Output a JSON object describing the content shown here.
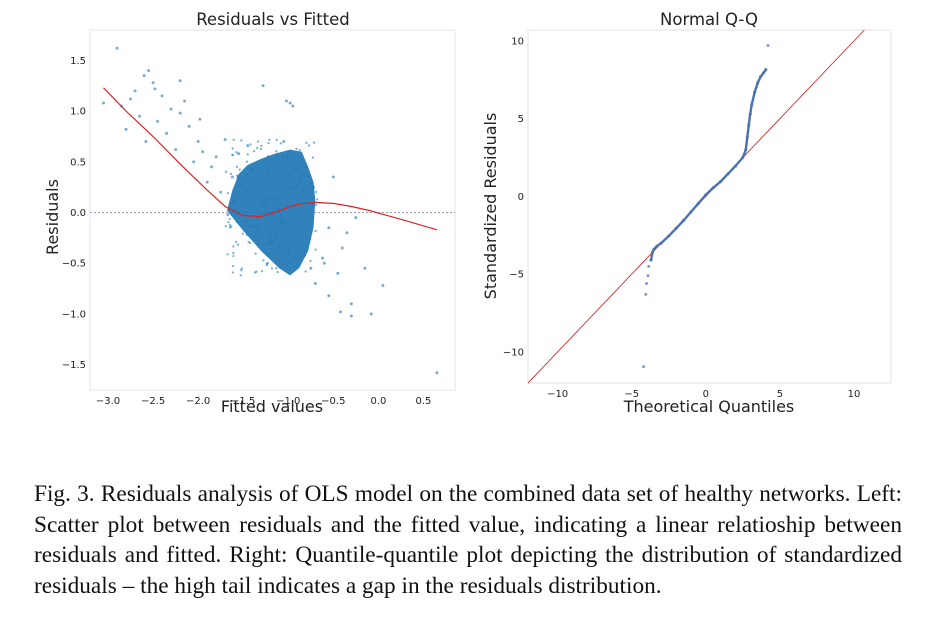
{
  "chart_data": [
    {
      "type": "scatter",
      "title": "Residuals vs Fitted",
      "xlabel": "Fitted values",
      "ylabel": "Residuals",
      "xlim": [
        -3.2,
        0.85
      ],
      "ylim": [
        -1.75,
        1.8
      ],
      "xticks": [
        -3.0,
        -2.5,
        -2.0,
        -1.5,
        -1.0,
        -0.5,
        0.0,
        0.5
      ],
      "xtick_labels": [
        "−3.0",
        "−2.5",
        "−2.0",
        "−1.5",
        "−1.0",
        "−0.5",
        "0.0",
        "0.5"
      ],
      "yticks": [
        1.5,
        1.0,
        0.5,
        0.0,
        -0.5,
        -1.0,
        -1.5
      ],
      "ytick_labels": [
        "1.5",
        "1.0",
        "0.5",
        "0.0",
        "−0.5",
        "−1.0",
        "−1.5"
      ],
      "reference_line": {
        "y": 0.0,
        "style": "dotted",
        "color": "#8a8ab8"
      },
      "dense_cluster": {
        "fitted_range": [
          -1.65,
          -0.65
        ],
        "residual_range": [
          -0.65,
          0.75
        ],
        "color": "#1f77b4"
      },
      "lowess": {
        "color": "#d62728",
        "x": [
          -3.05,
          -2.8,
          -2.5,
          -2.2,
          -1.9,
          -1.7,
          -1.5,
          -1.3,
          -1.1,
          -0.9,
          -0.7,
          -0.5,
          -0.3,
          -0.1,
          0.1,
          0.3,
          0.65
        ],
        "y": [
          1.23,
          1.0,
          0.75,
          0.48,
          0.22,
          0.06,
          -0.03,
          -0.04,
          0.02,
          0.08,
          0.1,
          0.09,
          0.06,
          0.02,
          -0.03,
          -0.08,
          -0.17
        ]
      },
      "points": [
        {
          "x": -2.9,
          "y": 1.62
        },
        {
          "x": -3.05,
          "y": 1.08
        },
        {
          "x": -2.85,
          "y": 1.05
        },
        {
          "x": -2.55,
          "y": 1.4
        },
        {
          "x": -2.6,
          "y": 1.35
        },
        {
          "x": -2.5,
          "y": 1.28
        },
        {
          "x": -2.7,
          "y": 1.2
        },
        {
          "x": -2.4,
          "y": 1.15
        },
        {
          "x": -2.3,
          "y": 1.02
        },
        {
          "x": -2.65,
          "y": 0.95
        },
        {
          "x": -2.45,
          "y": 0.9
        },
        {
          "x": -2.2,
          "y": 0.98
        },
        {
          "x": -2.1,
          "y": 0.85
        },
        {
          "x": -2.35,
          "y": 0.78
        },
        {
          "x": -2.0,
          "y": 0.7
        },
        {
          "x": -2.25,
          "y": 0.62
        },
        {
          "x": -1.95,
          "y": 0.6
        },
        {
          "x": -2.05,
          "y": 0.5
        },
        {
          "x": -1.85,
          "y": 0.45
        },
        {
          "x": -1.9,
          "y": 0.3
        },
        {
          "x": -1.8,
          "y": 0.55
        },
        {
          "x": -1.75,
          "y": 0.2
        },
        {
          "x": -2.15,
          "y": 1.1
        },
        {
          "x": -1.98,
          "y": 0.92
        },
        {
          "x": -1.7,
          "y": 0.72
        },
        {
          "x": -1.62,
          "y": 0.35
        },
        {
          "x": -2.8,
          "y": 0.82
        },
        {
          "x": -2.58,
          "y": 0.7
        },
        {
          "x": -1.28,
          "y": 1.25
        },
        {
          "x": -0.98,
          "y": 1.08
        },
        {
          "x": -1.02,
          "y": 1.1
        },
        {
          "x": -0.95,
          "y": 1.05
        },
        {
          "x": -0.6,
          "y": -0.5
        },
        {
          "x": -0.62,
          "y": -0.45
        },
        {
          "x": -0.45,
          "y": -0.6
        },
        {
          "x": -0.4,
          "y": -0.35
        },
        {
          "x": -0.35,
          "y": -0.2
        },
        {
          "x": -0.3,
          "y": -0.9
        },
        {
          "x": -0.3,
          "y": -1.02
        },
        {
          "x": -0.08,
          "y": -1.0
        },
        {
          "x": 0.05,
          "y": -0.72
        },
        {
          "x": -0.15,
          "y": -0.55
        },
        {
          "x": -0.25,
          "y": -0.05
        },
        {
          "x": -0.55,
          "y": -0.15
        },
        {
          "x": -0.5,
          "y": 0.35
        },
        {
          "x": -0.7,
          "y": -0.7
        },
        {
          "x": -0.75,
          "y": -0.55
        },
        {
          "x": 0.65,
          "y": -1.58
        },
        {
          "x": -1.05,
          "y": 0.7
        },
        {
          "x": -0.8,
          "y": 0.45
        },
        {
          "x": -0.72,
          "y": 0.25
        },
        {
          "x": -1.55,
          "y": 0.58
        },
        {
          "x": -1.45,
          "y": 0.66
        },
        {
          "x": -2.2,
          "y": 1.3
        },
        {
          "x": -2.48,
          "y": 1.22
        },
        {
          "x": -2.75,
          "y": 1.12
        },
        {
          "x": -1.6,
          "y": 0.1
        },
        {
          "x": -1.67,
          "y": -0.02
        },
        {
          "x": -0.55,
          "y": -0.82
        },
        {
          "x": -0.42,
          "y": -0.98
        }
      ]
    },
    {
      "type": "line",
      "title": "Normal Q-Q",
      "xlabel": "Theoretical Quantiles",
      "ylabel": "Standardized Residuals",
      "xlim": [
        -12,
        12.5
      ],
      "ylim": [
        -12,
        10.7
      ],
      "xticks": [
        -10,
        -5,
        0,
        5,
        10
      ],
      "xtick_labels": [
        "−10",
        "−5",
        "0",
        "5",
        "10"
      ],
      "yticks": [
        10,
        5,
        0,
        -5,
        -10
      ],
      "ytick_labels": [
        "10",
        "5",
        "0",
        "−5",
        "−10"
      ],
      "reference_line": {
        "slope": 1,
        "intercept": 0,
        "color": "#d62728"
      },
      "series": [
        {
          "name": "standardized residuals",
          "color": "#4c72b0",
          "x": [
            -3.7,
            -3.6,
            -3.5,
            -3.3,
            -3.0,
            -2.5,
            -2.0,
            -1.5,
            -1.0,
            -0.5,
            0.0,
            0.5,
            1.0,
            1.5,
            2.0,
            2.5,
            2.7,
            2.8,
            2.9,
            3.0,
            3.1,
            3.3,
            3.5,
            3.7,
            3.9,
            4.05
          ],
          "y": [
            -4.1,
            -3.6,
            -3.4,
            -3.2,
            -3.0,
            -2.55,
            -2.05,
            -1.55,
            -1.0,
            -0.45,
            0.1,
            0.55,
            0.95,
            1.45,
            1.95,
            2.5,
            3.0,
            3.8,
            4.6,
            5.3,
            5.9,
            6.7,
            7.3,
            7.7,
            7.95,
            8.15
          ]
        }
      ],
      "outliers": [
        {
          "x": -3.85,
          "y": -4.5
        },
        {
          "x": -3.9,
          "y": -5.1
        },
        {
          "x": -4.0,
          "y": -5.6
        },
        {
          "x": -4.05,
          "y": -6.3
        },
        {
          "x": -4.2,
          "y": -10.95
        },
        {
          "x": 4.2,
          "y": 9.7
        }
      ]
    }
  ],
  "caption": "Fig. 3.  Residuals analysis of OLS model on the combined data set of healthy networks. Left: Scatter plot between residuals and the fitted value, indicating a linear relatioship between residuals and fitted. Right: Quantile-quantile plot depicting the distribution of standardized residuals – the high tail indicates a gap in the residuals distribution."
}
